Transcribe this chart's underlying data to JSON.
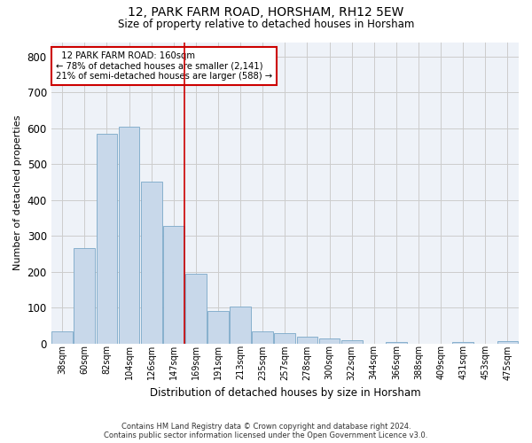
{
  "title_line1": "12, PARK FARM ROAD, HORSHAM, RH12 5EW",
  "title_line2": "Size of property relative to detached houses in Horsham",
  "xlabel": "Distribution of detached houses by size in Horsham",
  "ylabel": "Number of detached properties",
  "footer_line1": "Contains HM Land Registry data © Crown copyright and database right 2024.",
  "footer_line2": "Contains public sector information licensed under the Open Government Licence v3.0.",
  "annotation_line1": "  12 PARK FARM ROAD: 160sqm",
  "annotation_line2": "← 78% of detached houses are smaller (2,141)",
  "annotation_line3": "21% of semi-detached houses are larger (588) →",
  "bar_labels": [
    "38sqm",
    "60sqm",
    "82sqm",
    "104sqm",
    "126sqm",
    "147sqm",
    "169sqm",
    "191sqm",
    "213sqm",
    "235sqm",
    "257sqm",
    "278sqm",
    "300sqm",
    "322sqm",
    "344sqm",
    "366sqm",
    "388sqm",
    "409sqm",
    "431sqm",
    "453sqm",
    "475sqm"
  ],
  "bar_values": [
    35,
    265,
    585,
    605,
    450,
    328,
    195,
    90,
    102,
    35,
    30,
    18,
    15,
    10,
    0,
    5,
    0,
    0,
    5,
    0,
    8
  ],
  "bar_color": "#c8d8ea",
  "bar_edge_color": "#7aa8c8",
  "vline_x": 5.5,
  "vline_color": "#cc0000",
  "annotation_box_color": "#cc0000",
  "ylim": [
    0,
    840
  ],
  "yticks": [
    0,
    100,
    200,
    300,
    400,
    500,
    600,
    700,
    800
  ],
  "grid_color": "#cccccc",
  "bg_color": "#ffffff",
  "plot_bg_color": "#eef2f8"
}
